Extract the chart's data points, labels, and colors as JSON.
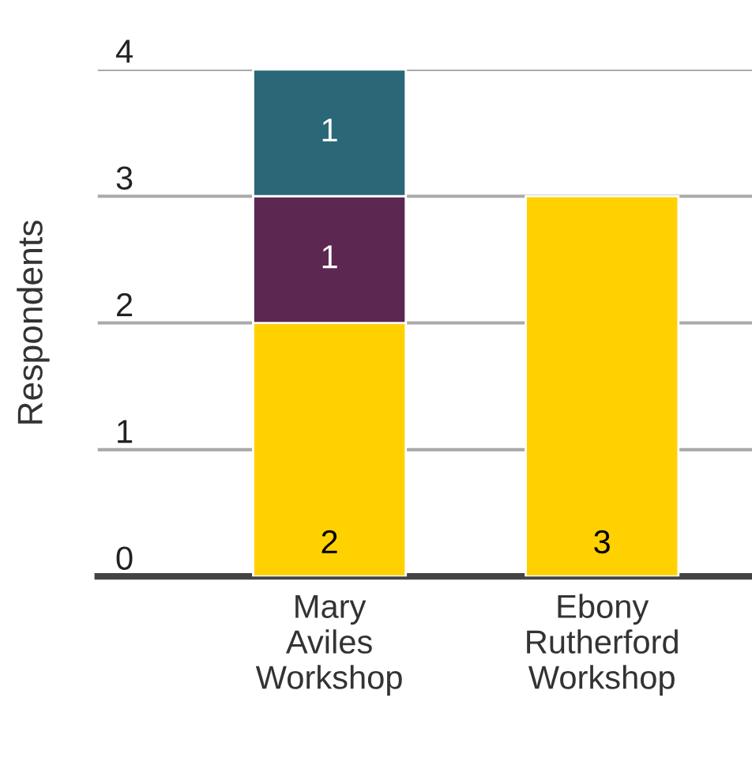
{
  "chart_data": {
    "type": "bar",
    "stacked": true,
    "ylabel": "Respondents",
    "categories": [
      "Mary Aviles Workshop",
      "Ebony Rutherford Workshop"
    ],
    "series": [
      {
        "color": "#ffd100",
        "values": [
          2,
          3
        ]
      },
      {
        "color": "#5c2751",
        "values": [
          1,
          null
        ]
      },
      {
        "color": "#2a6777",
        "values": [
          1,
          null
        ]
      }
    ],
    "ylim": [
      0,
      4
    ],
    "yticks": [
      0,
      1,
      2,
      3,
      4
    ],
    "grid": "y",
    "data_labels": true
  }
}
